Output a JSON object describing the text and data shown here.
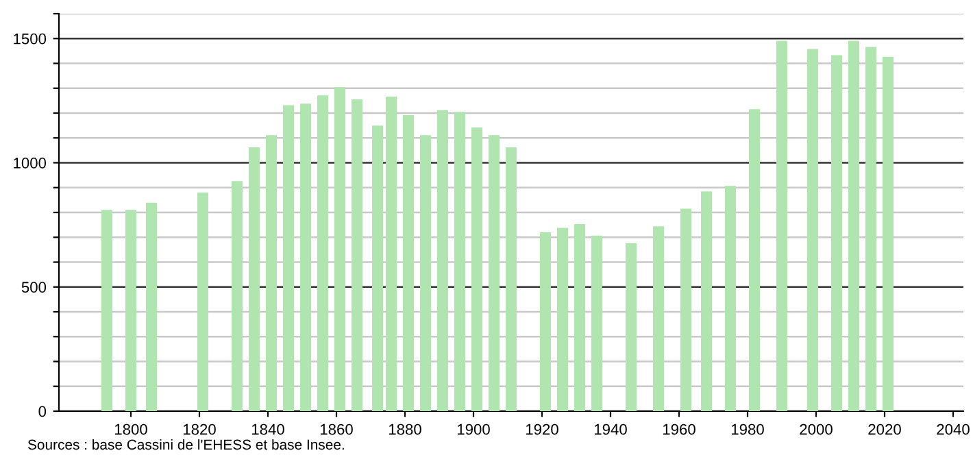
{
  "chart_data": {
    "type": "bar",
    "x": [
      1793,
      1800,
      1806,
      1821,
      1831,
      1836,
      1841,
      1846,
      1851,
      1856,
      1861,
      1866,
      1872,
      1876,
      1881,
      1886,
      1891,
      1896,
      1901,
      1906,
      1911,
      1921,
      1926,
      1931,
      1936,
      1946,
      1954,
      1962,
      1968,
      1975,
      1982,
      1990,
      1999,
      2006,
      2011,
      2016,
      2021
    ],
    "values": [
      810,
      810,
      839,
      880,
      926,
      1062,
      1111,
      1232,
      1238,
      1271,
      1304,
      1255,
      1150,
      1266,
      1192,
      1111,
      1212,
      1205,
      1142,
      1111,
      1062,
      720,
      738,
      753,
      707,
      676,
      744,
      815,
      885,
      907,
      1216,
      1491,
      1458,
      1433,
      1491,
      1466,
      1427
    ],
    "color": "#b0e5b0",
    "xlim": [
      1779,
      2043
    ],
    "xticks": [
      1800,
      1820,
      1840,
      1860,
      1880,
      1900,
      1920,
      1940,
      1960,
      1980,
      2000,
      2020,
      2040
    ],
    "ylim": [
      0,
      1600
    ],
    "yticks": [
      0,
      {
        "value": 100,
        "label": null
      },
      {
        "value": 200,
        "label": null
      },
      {
        "value": 300,
        "label": null
      },
      {
        "value": 400,
        "label": null
      },
      500,
      {
        "value": 600,
        "label": null
      },
      {
        "value": 700,
        "label": null
      },
      {
        "value": 800,
        "label": null
      },
      {
        "value": 900,
        "label": null
      },
      1000,
      {
        "value": 1100,
        "label": null
      },
      {
        "value": 1200,
        "label": null
      },
      {
        "value": 1300,
        "label": null
      },
      {
        "value": 1400,
        "label": null
      },
      1500,
      {
        "value": 1600,
        "label": null
      }
    ],
    "grid": "y",
    "annotations": [
      "Sources : base Cassini de l'EHESS et base Insee."
    ]
  }
}
